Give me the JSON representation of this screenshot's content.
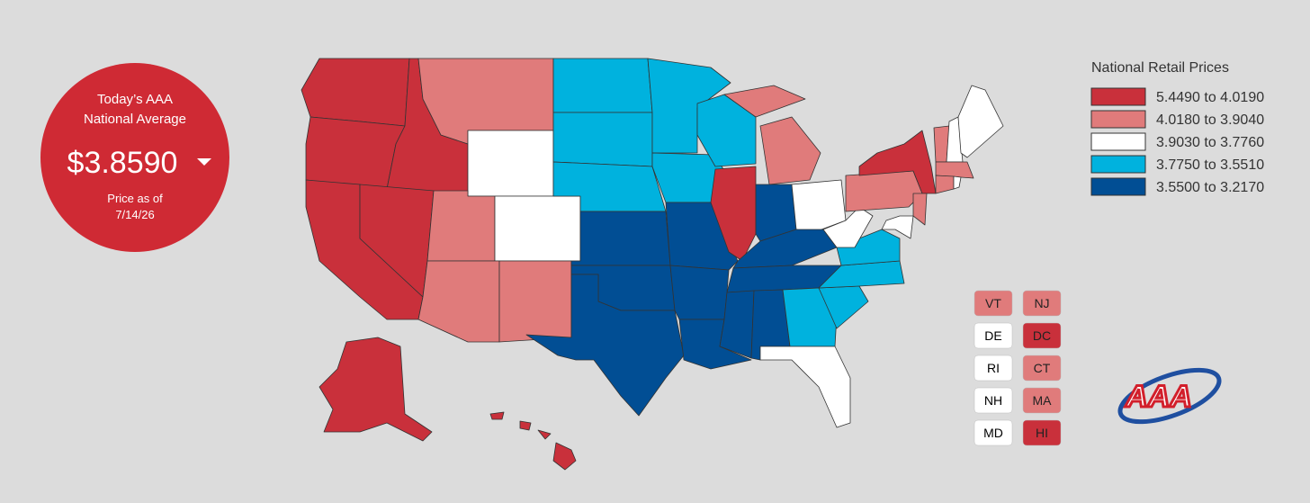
{
  "badge": {
    "line1": "Today’s AAA",
    "line2": "National Average",
    "price": "$3.8590",
    "asof": "Price as of",
    "date": "7/14/26"
  },
  "legend": {
    "title": "National Retail Prices",
    "items": [
      {
        "label": "5.4490 to 4.0190",
        "color": "#c9303b"
      },
      {
        "label": "4.0180 to 3.9040",
        "color": "#e07b7b"
      },
      {
        "label": "3.9030 to 3.7760",
        "color": "#ffffff"
      },
      {
        "label": "3.7750 to 3.5510",
        "color": "#00b2de"
      },
      {
        "label": "3.5500 to 3.2170",
        "color": "#014e94"
      }
    ]
  },
  "small_states": [
    {
      "label": "VT",
      "color": "#e07b7b"
    },
    {
      "label": "NJ",
      "color": "#e07b7b"
    },
    {
      "label": "DE",
      "color": "#ffffff"
    },
    {
      "label": "DC",
      "color": "#c9303b"
    },
    {
      "label": "RI",
      "color": "#ffffff"
    },
    {
      "label": "CT",
      "color": "#e07b7b"
    },
    {
      "label": "NH",
      "color": "#ffffff"
    },
    {
      "label": "MA",
      "color": "#e07b7b"
    },
    {
      "label": "MD",
      "color": "#ffffff"
    },
    {
      "label": "HI",
      "color": "#c9303b"
    }
  ],
  "logo": "AAA"
}
